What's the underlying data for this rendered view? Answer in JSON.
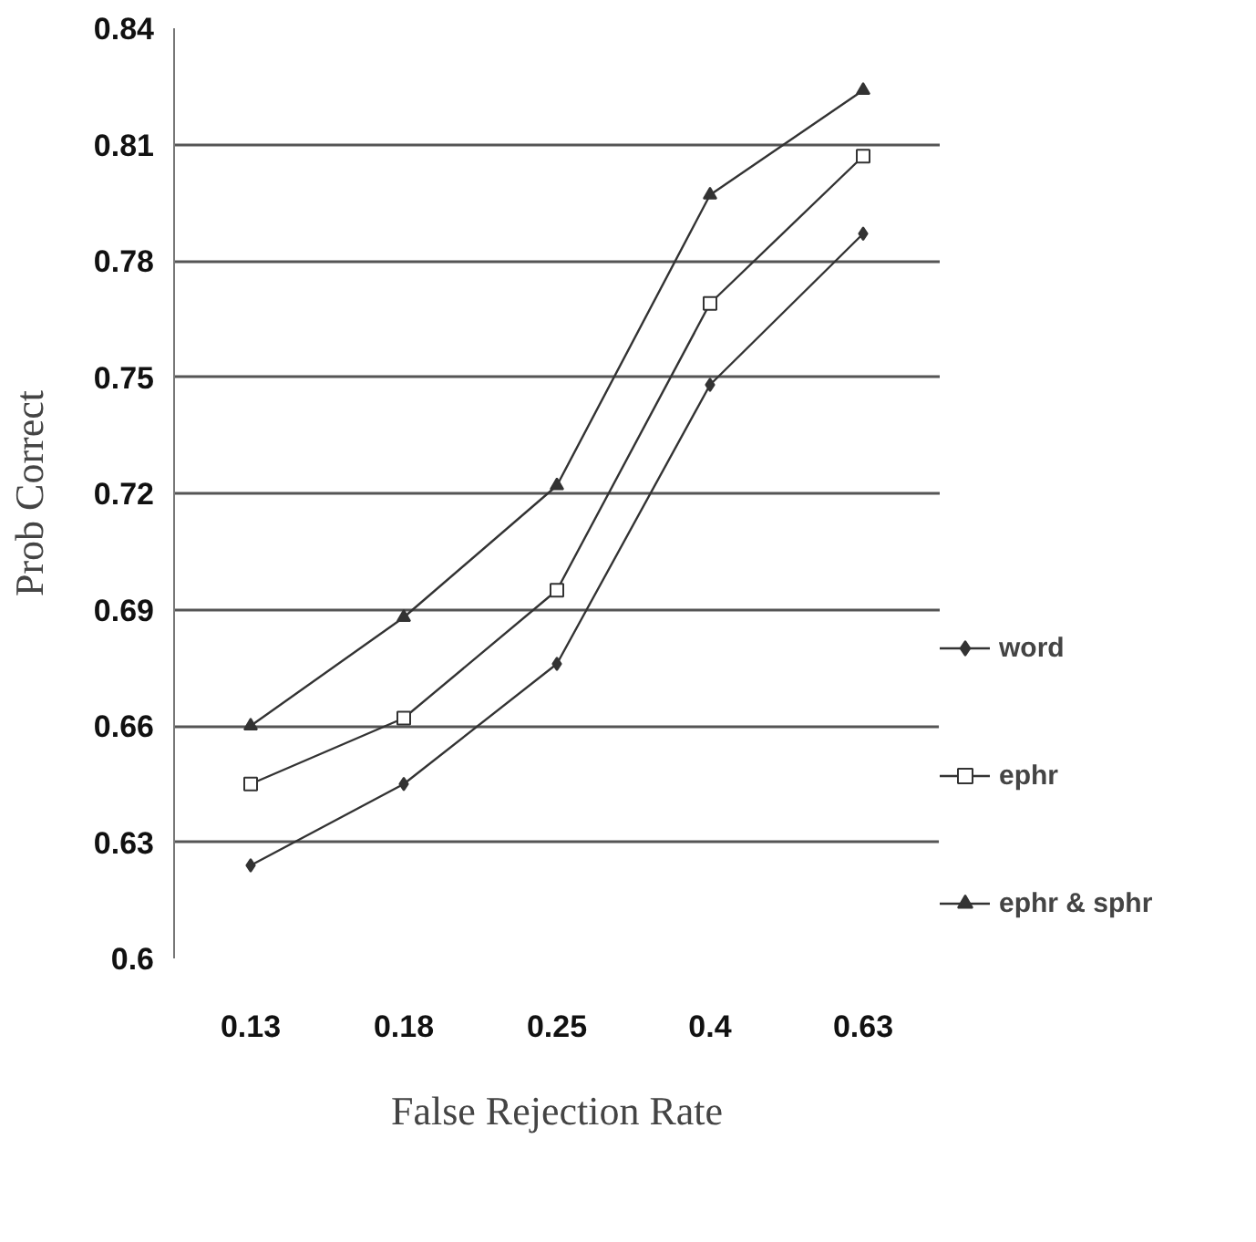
{
  "chart_data": {
    "type": "line",
    "xlabel": "False Rejection Rate",
    "ylabel": "Prob Correct",
    "categories": [
      "0.13",
      "0.18",
      "0.25",
      "0.4",
      "0.63"
    ],
    "series": [
      {
        "name": "word",
        "color": "#333333",
        "marker": "diamond",
        "values": [
          0.624,
          0.645,
          0.676,
          0.748,
          0.787
        ]
      },
      {
        "name": "ephr",
        "color": "#333333",
        "marker": "square",
        "values": [
          0.645,
          0.662,
          0.695,
          0.769,
          0.807
        ]
      },
      {
        "name": "ephr & sphr",
        "color": "#333333",
        "marker": "triangle",
        "values": [
          0.66,
          0.688,
          0.722,
          0.797,
          0.824
        ]
      }
    ],
    "ylim": [
      0.6,
      0.84
    ],
    "yticks": [
      0.6,
      0.63,
      0.66,
      0.69,
      0.72,
      0.75,
      0.78,
      0.81,
      0.84
    ],
    "grid": "y",
    "legend": "right",
    "line_style": "solid"
  }
}
